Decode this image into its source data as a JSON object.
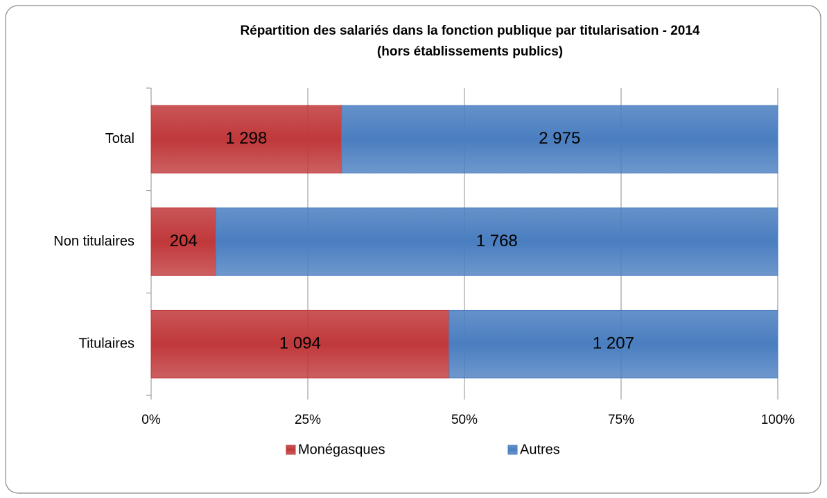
{
  "chart_data": {
    "type": "bar",
    "orientation": "horizontal",
    "stack": "percent",
    "title": "Répartition des salariés dans la fonction publique par titularisation - 2014",
    "subtitle": "(hors établissements publics)",
    "categories": [
      "Total",
      "Non titulaires",
      "Titulaires"
    ],
    "series": [
      {
        "name": "Monégasques",
        "color": "#c0383a",
        "values": [
          1298,
          204,
          1094
        ],
        "value_labels": [
          "1 298",
          "204",
          "1 094"
        ]
      },
      {
        "name": "Autres",
        "color": "#4a7ec0",
        "values": [
          2975,
          1768,
          1207
        ],
        "value_labels": [
          "2 975",
          "1 768",
          "1 207"
        ]
      }
    ],
    "xlim": [
      0,
      100
    ],
    "xticks": [
      {
        "value": 0,
        "label": "0%"
      },
      {
        "value": 25,
        "label": "25%"
      },
      {
        "value": 50,
        "label": "50%"
      },
      {
        "value": 75,
        "label": "75%"
      },
      {
        "value": 100,
        "label": "100%"
      }
    ],
    "grid": true,
    "legend": "bottom"
  }
}
